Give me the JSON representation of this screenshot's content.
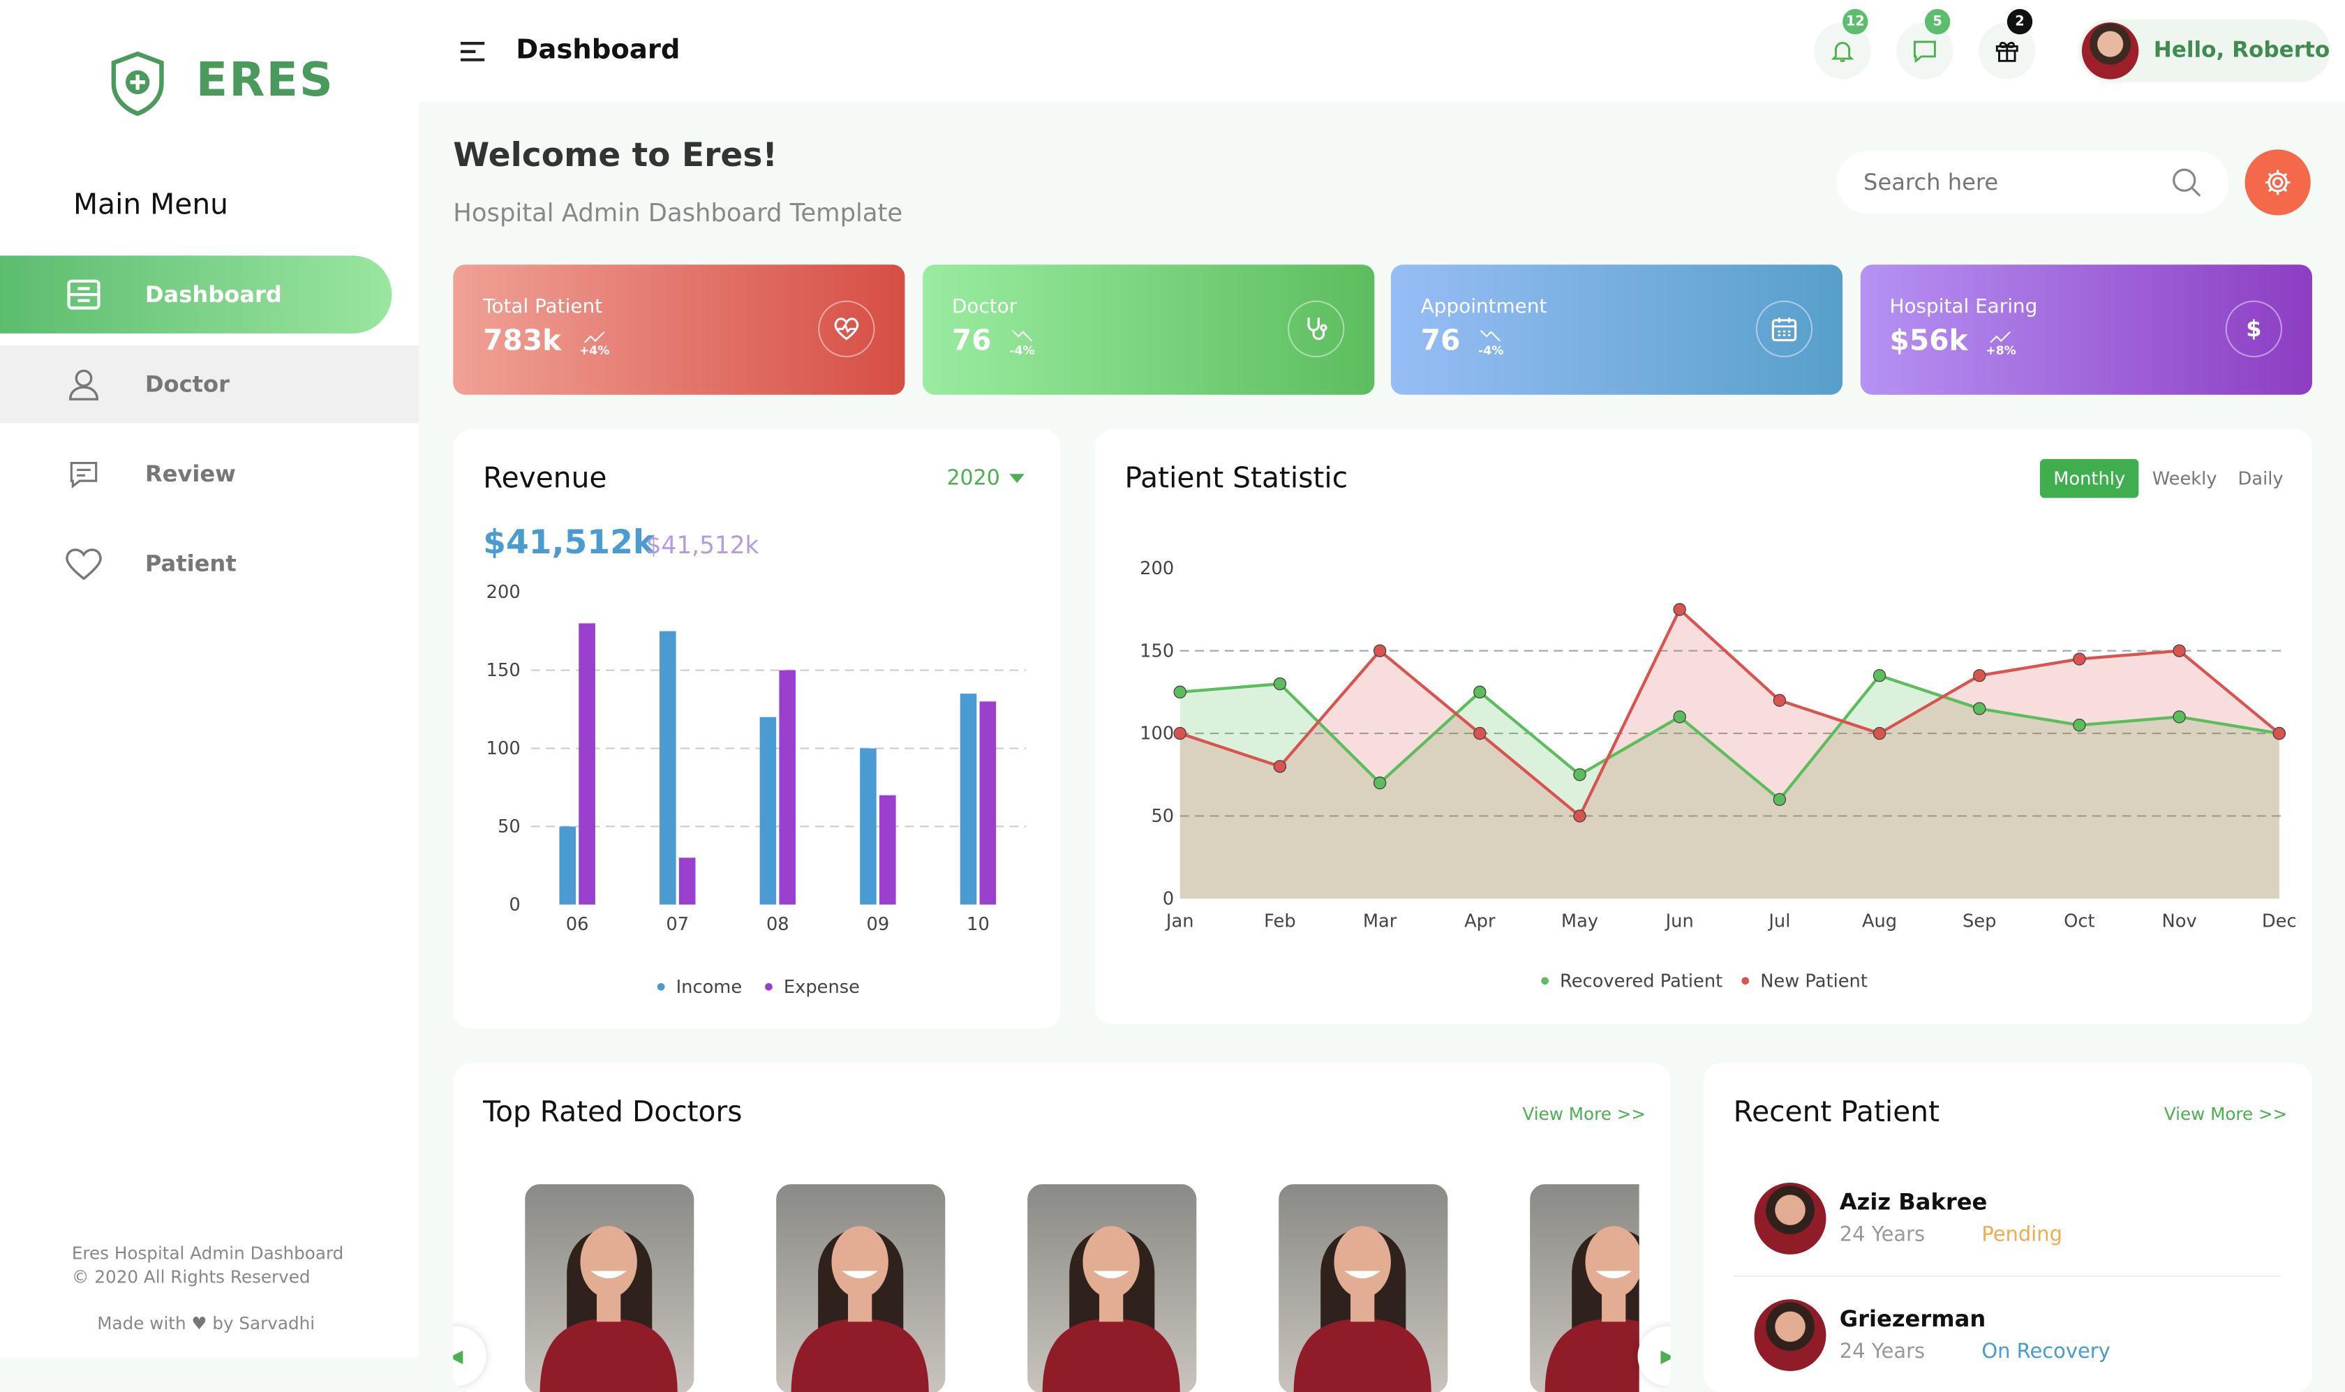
{
  "brand": {
    "name": "ERES"
  },
  "sidebar": {
    "title": "Main Menu",
    "items": [
      {
        "label": "Dashboard",
        "icon": "dashboard-icon"
      },
      {
        "label": "Doctor",
        "icon": "user-icon"
      },
      {
        "label": "Review",
        "icon": "review-icon"
      },
      {
        "label": "Patient",
        "icon": "heart-icon"
      }
    ],
    "footer": {
      "line1": "Eres Hospital Admin Dashboard",
      "line2": "© 2020 All Rights Reserved",
      "made_prefix": "Made with",
      "made_suffix": "by Sarvadhi"
    }
  },
  "header": {
    "title": "Dashboard",
    "notifications": "12",
    "messages": "5",
    "gifts": "2",
    "greeting": "Hello, Roberto"
  },
  "welcome": {
    "title": "Welcome to Eres!",
    "subtitle": "Hospital Admin Dashboard Template"
  },
  "search": {
    "placeholder": "Search here"
  },
  "stats": [
    {
      "label": "Total Patient",
      "value": "783k",
      "change": "+4%",
      "icon": "heart-pulse-icon",
      "trend": "up"
    },
    {
      "label": "Doctor",
      "value": "76",
      "change": "-4%",
      "icon": "stethoscope-icon",
      "trend": "down"
    },
    {
      "label": "Appointment",
      "value": "76",
      "change": "-4%",
      "icon": "calendar-icon",
      "trend": "down"
    },
    {
      "label": "Hospital Earing",
      "value": "$56k",
      "change": "+8%",
      "icon": "dollar-icon",
      "trend": "up"
    }
  ],
  "colors": {
    "accent": "#4caf50",
    "new": "#d9534f",
    "recovered": "#5cbd5c",
    "income": "#4a9bd1",
    "expense": "#9b3fce",
    "orange": "#f4694a"
  },
  "revenue": {
    "title": "Revenue",
    "year": "2020",
    "amount": "$41,512k",
    "amount2": "$41,512k"
  },
  "statistic": {
    "title": "Patient Statistic",
    "tabs": [
      "Monthly",
      "Weekly",
      "Daily"
    ],
    "active_tab": "Monthly"
  },
  "chart_data": [
    {
      "type": "bar",
      "categories": [
        "06",
        "07",
        "08",
        "09",
        "10"
      ],
      "ylim": [
        0,
        200
      ],
      "yticks": [
        "0",
        "50",
        "100",
        "150",
        "200"
      ],
      "grid": true,
      "legend": "bottom",
      "series": [
        {
          "name": "Income",
          "values": [
            50,
            175,
            120,
            100,
            135
          ]
        },
        {
          "name": "Expense",
          "values": [
            180,
            30,
            150,
            70,
            130
          ]
        }
      ]
    },
    {
      "type": "area",
      "categories": [
        "Jan",
        "Feb",
        "Mar",
        "Apr",
        "May",
        "Jun",
        "Jul",
        "Aug",
        "Sep",
        "Oct",
        "Nov",
        "Dec"
      ],
      "ylim": [
        0,
        200
      ],
      "yticks": [
        "0",
        "50",
        "100",
        "150",
        "200"
      ],
      "grid": true,
      "legend": "bottom",
      "series": [
        {
          "name": "Recovered Patient",
          "values": [
            125,
            130,
            70,
            125,
            75,
            110,
            60,
            135,
            115,
            105,
            110,
            100
          ]
        },
        {
          "name": "New Patient",
          "values": [
            100,
            80,
            150,
            100,
            50,
            175,
            120,
            100,
            135,
            145,
            150,
            100
          ]
        }
      ]
    }
  ],
  "top_doctors": {
    "title": "Top Rated Doctors",
    "view_more": "View More >>"
  },
  "recent": {
    "title": "Recent Patient",
    "view_more": "View More >>",
    "patients": [
      {
        "name": "Aziz Bakree",
        "age": "24 Years",
        "status": "Pending",
        "status_color": "#f0ad4e"
      },
      {
        "name": "Griezerman",
        "age": "24 Years",
        "status": "On Recovery",
        "status_color": "#4a9bd1"
      }
    ]
  }
}
